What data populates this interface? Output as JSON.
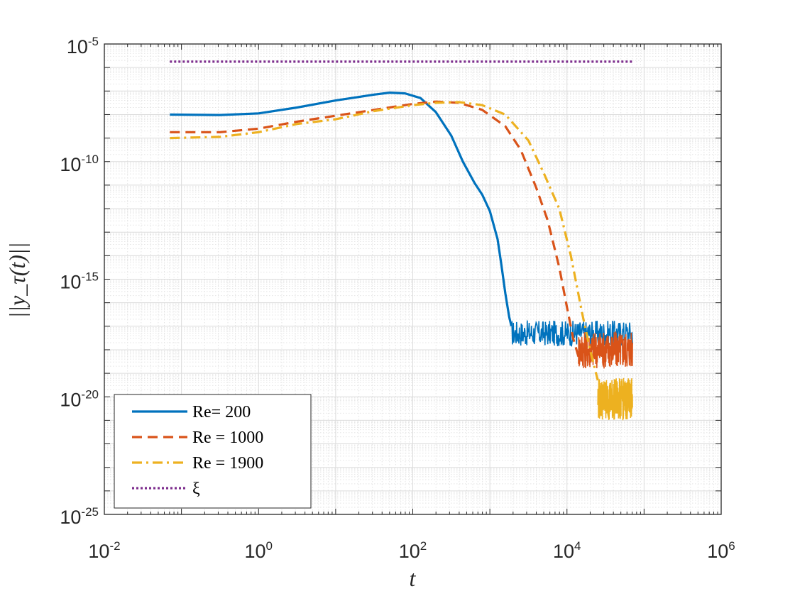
{
  "chart_data": {
    "type": "line",
    "title": "",
    "xlabel": "t",
    "ylabel": "||y_τ(t)||",
    "xscale": "log",
    "yscale": "log",
    "xlim_exp": [
      -2,
      6
    ],
    "ylim_exp": [
      -25,
      -5
    ],
    "xticks": [
      {
        "base": "10",
        "exp": "-2"
      },
      {
        "base": "10",
        "exp": "0"
      },
      {
        "base": "10",
        "exp": "2"
      },
      {
        "base": "10",
        "exp": "4"
      },
      {
        "base": "10",
        "exp": "6"
      }
    ],
    "yticks": [
      {
        "base": "10",
        "exp": "-5"
      },
      {
        "base": "10",
        "exp": "-10"
      },
      {
        "base": "10",
        "exp": "-15"
      },
      {
        "base": "10",
        "exp": "-20"
      },
      {
        "base": "10",
        "exp": "-25"
      }
    ],
    "grid": true,
    "legend_position": "bottom-left",
    "series": [
      {
        "name": "Re= 200",
        "color": "#0072BD",
        "style": "solid",
        "points_log10": [
          [
            -1.15,
            -8.0
          ],
          [
            -0.5,
            -8.02
          ],
          [
            0,
            -7.95
          ],
          [
            0.5,
            -7.7
          ],
          [
            1,
            -7.4
          ],
          [
            1.5,
            -7.15
          ],
          [
            1.7,
            -7.07
          ],
          [
            1.9,
            -7.1
          ],
          [
            2.1,
            -7.3
          ],
          [
            2.3,
            -7.9
          ],
          [
            2.5,
            -8.9
          ],
          [
            2.65,
            -10.0
          ],
          [
            2.8,
            -10.9
          ],
          [
            2.9,
            -11.4
          ],
          [
            3.0,
            -12.1
          ],
          [
            3.1,
            -13.3
          ],
          [
            3.15,
            -14.4
          ],
          [
            3.2,
            -15.6
          ],
          [
            3.25,
            -16.6
          ],
          [
            3.28,
            -17.0
          ]
        ],
        "noise_log10": {
          "x_start": 3.28,
          "x_end": 4.85,
          "y_level": -17.3,
          "y_amplitude": 0.55
        }
      },
      {
        "name": "Re = 1000",
        "color": "#D95319",
        "style": "dashed",
        "points_log10": [
          [
            -1.15,
            -8.75
          ],
          [
            -0.5,
            -8.75
          ],
          [
            0,
            -8.6
          ],
          [
            0.5,
            -8.3
          ],
          [
            1,
            -8.05
          ],
          [
            1.5,
            -7.8
          ],
          [
            2.0,
            -7.55
          ],
          [
            2.3,
            -7.45
          ],
          [
            2.6,
            -7.5
          ],
          [
            2.9,
            -7.8
          ],
          [
            3.2,
            -8.5
          ],
          [
            3.4,
            -9.5
          ],
          [
            3.6,
            -11.1
          ],
          [
            3.75,
            -12.5
          ],
          [
            3.9,
            -14.5
          ],
          [
            4.0,
            -16.2
          ],
          [
            4.08,
            -17.5
          ],
          [
            4.15,
            -18.3
          ]
        ],
        "noise_log10": {
          "x_start": 4.15,
          "x_end": 4.85,
          "y_level": -18.0,
          "y_amplitude": 0.8
        }
      },
      {
        "name": "Re = 1900",
        "color": "#EDB120",
        "style": "dashdot",
        "points_log10": [
          [
            -1.15,
            -9.0
          ],
          [
            -0.5,
            -8.95
          ],
          [
            0,
            -8.75
          ],
          [
            0.5,
            -8.4
          ],
          [
            1,
            -8.2
          ],
          [
            1.5,
            -7.85
          ],
          [
            2.0,
            -7.6
          ],
          [
            2.3,
            -7.5
          ],
          [
            2.6,
            -7.47
          ],
          [
            2.9,
            -7.6
          ],
          [
            3.2,
            -8.0
          ],
          [
            3.5,
            -9.1
          ],
          [
            3.7,
            -10.5
          ],
          [
            3.9,
            -12.0
          ],
          [
            4.05,
            -14.0
          ],
          [
            4.2,
            -16.5
          ],
          [
            4.3,
            -18.0
          ],
          [
            4.4,
            -19.3
          ]
        ],
        "noise_log10": {
          "x_start": 4.4,
          "x_end": 4.85,
          "y_level": -20.1,
          "y_amplitude": 0.9
        }
      },
      {
        "name": "ξ",
        "color": "#7E2F8E",
        "style": "dotted",
        "points_log10": [
          [
            -1.15,
            -5.75
          ],
          [
            4.85,
            -5.75
          ]
        ]
      }
    ]
  }
}
